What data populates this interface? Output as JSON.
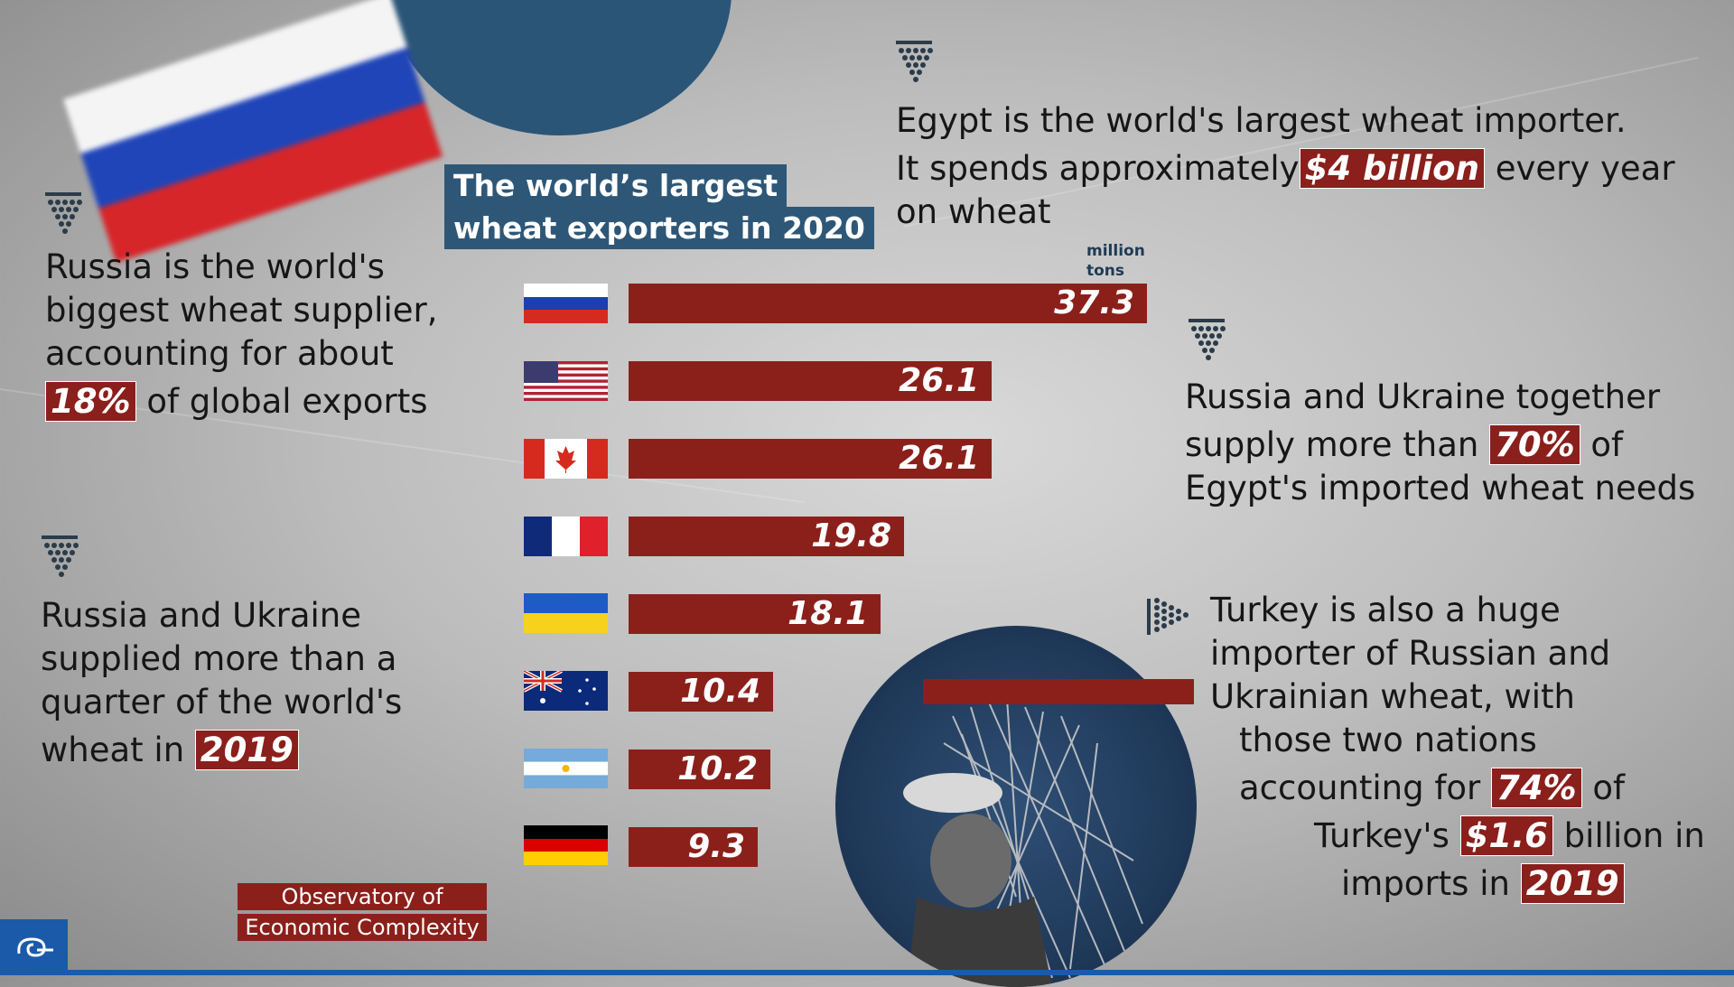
{
  "colors": {
    "bar": "#8b201b",
    "title_bg": "#2e5777",
    "highlight": "#8a1f1c",
    "brand": "#1b5aa8"
  },
  "chart_data": {
    "type": "bar",
    "orientation": "horizontal",
    "title": "The world’s largest wheat exporters in 2020",
    "unit": "million tons",
    "categories": [
      "Russia",
      "United States",
      "Canada",
      "France",
      "Ukraine",
      "Australia",
      "Argentina",
      "Germany"
    ],
    "values": [
      37.3,
      26.1,
      26.1,
      19.8,
      18.1,
      10.4,
      10.2,
      9.3
    ],
    "labels": [
      "37.3",
      "26.1",
      "26.1",
      "19.8",
      "18.1",
      "10.4",
      "10.2",
      "9.3"
    ],
    "xlim": [
      0,
      37.3
    ],
    "grid": false
  },
  "title": {
    "line1": "The world’s largest",
    "line2": "wheat exporters in 2020"
  },
  "unit": {
    "line1": "million",
    "line2": "tons"
  },
  "facts": {
    "russia": {
      "line1": "Russia is the world's",
      "line2": "biggest wheat supplier,",
      "line3": "accounting for about",
      "highlight": "18%",
      "rest": " of global exports"
    },
    "quarter": {
      "line1": "Russia and Ukraine",
      "line2": "supplied more than a",
      "line3": "quarter of the world's",
      "line4": "wheat in ",
      "highlight": "2019"
    },
    "egypt": {
      "line1": "Egypt is the world's largest wheat importer.",
      "line2a": "It spends approximately",
      "highlight": "$4 billion",
      "line2b": " every year",
      "line3": "on wheat"
    },
    "egypt_share": {
      "line1": "Russia and Ukraine together",
      "line2a": "supply more than ",
      "highlight": "70%",
      "line2b": " of",
      "line3": "Egypt's imported wheat needs"
    },
    "turkey": {
      "line1": "Turkey is also a huge",
      "line2": "importer of Russian and",
      "line3": "Ukrainian wheat, with",
      "line4": "those two nations",
      "line5a": "accounting for ",
      "hl1": "74%",
      "line5b": " of",
      "line6a": "Turkey's ",
      "hl2": "$1.6",
      "line6b": " billion in",
      "line7a": "imports in ",
      "hl3": "2019"
    }
  },
  "source": {
    "line1": "Observatory of",
    "line2": "Economic Complexity"
  },
  "icons": [
    "arrow-down-icon",
    "arrow-right-icon",
    "almayadeen-logo-icon"
  ]
}
